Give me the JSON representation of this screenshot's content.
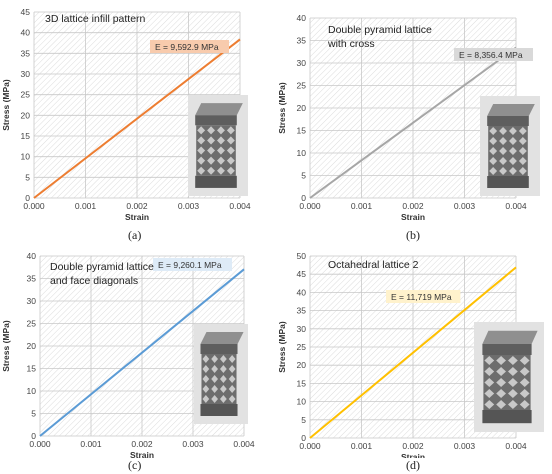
{
  "chart_data": [
    {
      "type": "line",
      "panel_label": "(a)",
      "title": "3D lattice infill pattern",
      "xlabel": "Strain",
      "ylabel": "Stress (MPa)",
      "xlim": [
        0,
        0.004
      ],
      "ylim": [
        0,
        45
      ],
      "xticks": [
        "0.000",
        "0.001",
        "0.002",
        "0.003",
        "0.004"
      ],
      "yticks": [
        0,
        5,
        10,
        15,
        20,
        25,
        30,
        35,
        40,
        45
      ],
      "series": [
        {
          "x": [
            0,
            0.004
          ],
          "y": [
            0,
            38.37
          ],
          "color": "#ed7d31"
        }
      ],
      "annotation": "E = 9,592.9 MPa",
      "annotation_bg": "#f8cbad",
      "inset_image": "lattice-specimen",
      "grid": true
    },
    {
      "type": "line",
      "panel_label": "(b)",
      "title": "Double pyramid lattice with cross",
      "title_lines": [
        "Double pyramid lattice",
        "with cross"
      ],
      "xlabel": "Strain",
      "ylabel": "Stress (MPa)",
      "xlim": [
        0,
        0.004
      ],
      "ylim": [
        0,
        40
      ],
      "xticks": [
        "0.000",
        "0.001",
        "0.002",
        "0.003",
        "0.004"
      ],
      "yticks": [
        0,
        5,
        10,
        15,
        20,
        25,
        30,
        35,
        40
      ],
      "series": [
        {
          "x": [
            0,
            0.004
          ],
          "y": [
            0,
            33.43
          ],
          "color": "#a6a6a6"
        }
      ],
      "annotation": "E = 8,356.4 MPa",
      "annotation_bg": "#d9d9d9",
      "inset_image": "lattice-specimen",
      "grid": true
    },
    {
      "type": "line",
      "panel_label": "(c)",
      "title": "Double pyramid lattice and face diagonals",
      "title_lines": [
        "Double pyramid lattice",
        "and face diagonals"
      ],
      "xlabel": "Strain",
      "ylabel": "Stress (MPa)",
      "xlim": [
        0,
        0.004
      ],
      "ylim": [
        0,
        40
      ],
      "xticks": [
        "0.000",
        "0.001",
        "0.002",
        "0.003",
        "0.004"
      ],
      "yticks": [
        0,
        5,
        10,
        15,
        20,
        25,
        30,
        35,
        40
      ],
      "series": [
        {
          "x": [
            0,
            0.004
          ],
          "y": [
            0,
            37.04
          ],
          "color": "#5b9bd5"
        }
      ],
      "annotation": "E = 9,260.1 MPa",
      "annotation_bg": "#deebf7",
      "inset_image": "lattice-specimen",
      "grid": true
    },
    {
      "type": "line",
      "panel_label": "(d)",
      "title": "Octahedral lattice 2",
      "xlabel": "Strain",
      "ylabel": "Stress (MPa)",
      "xlim": [
        0,
        0.004
      ],
      "ylim": [
        0,
        50
      ],
      "xticks": [
        "0.000",
        "0.001",
        "0.002",
        "0.003",
        "0.004"
      ],
      "yticks": [
        0,
        5,
        10,
        15,
        20,
        25,
        30,
        35,
        40,
        45,
        50
      ],
      "series": [
        {
          "x": [
            0,
            0.004
          ],
          "y": [
            0,
            46.88
          ],
          "color": "#ffc000"
        }
      ],
      "annotation": "E = 11,719 MPa",
      "annotation_bg": "#fff2cc",
      "inset_image": "lattice-specimen",
      "grid": true
    }
  ]
}
